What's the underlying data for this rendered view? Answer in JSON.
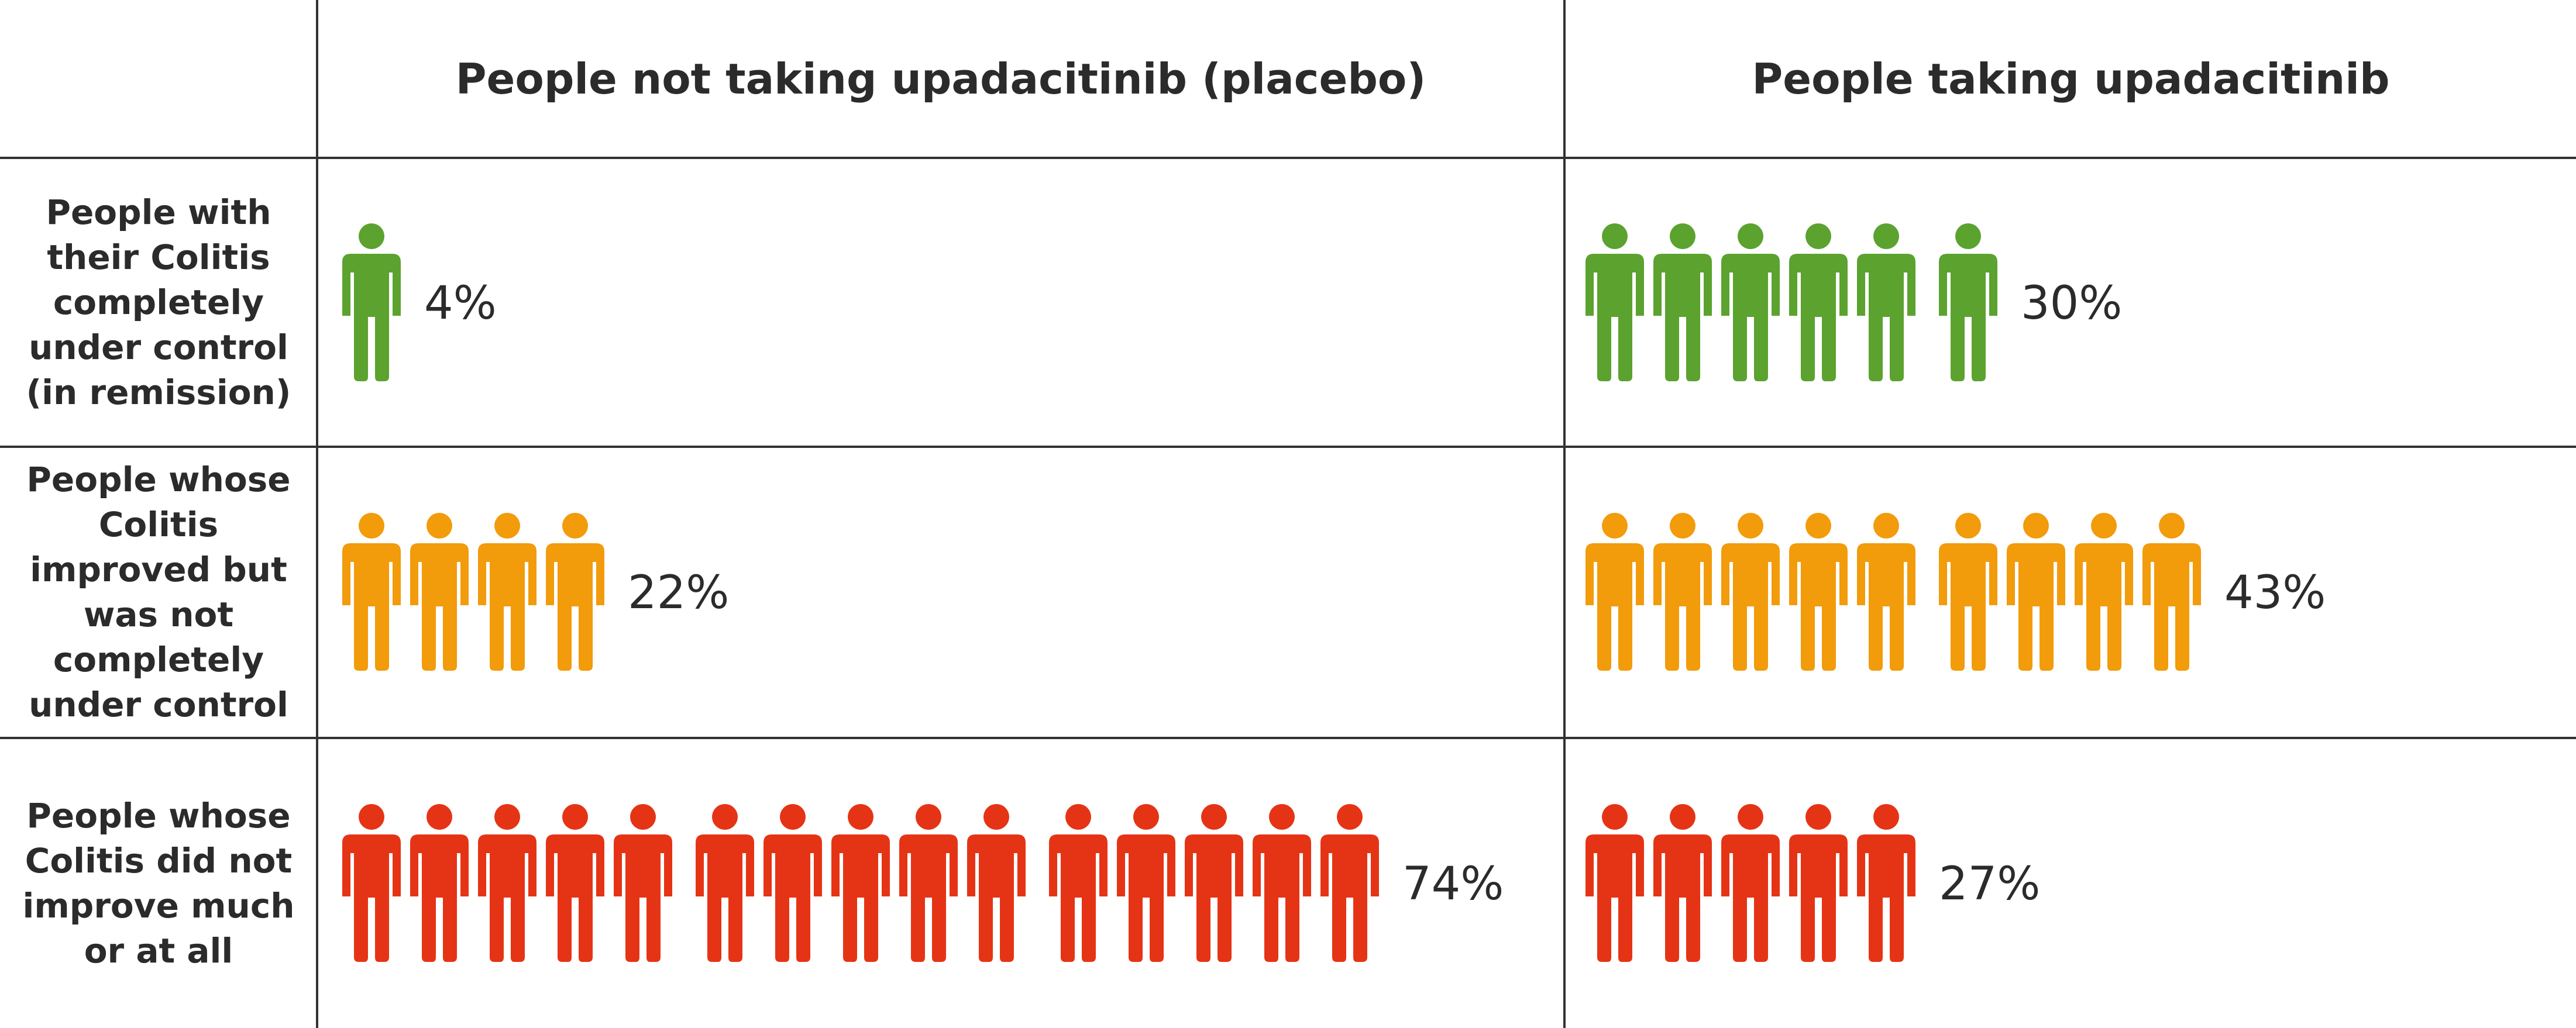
{
  "chart_data": {
    "type": "table",
    "columns": [
      "People not taking upadacitinib (placebo)",
      "People taking upadacitinib"
    ],
    "rows": [
      {
        "label_lines": [
          "People with",
          "their Colitis",
          "completely",
          "under control",
          "(in remission)"
        ],
        "color": "#5ba22f",
        "cells": [
          {
            "value": 4,
            "label": "4%",
            "icons": 1
          },
          {
            "value": 30,
            "label": "30%",
            "icons": 6
          }
        ]
      },
      {
        "label_lines": [
          "People whose",
          "Colitis",
          "improved but",
          "was not",
          "completely",
          "under control"
        ],
        "color": "#f29b0b",
        "cells": [
          {
            "value": 22,
            "label": "22%",
            "icons": 4
          },
          {
            "value": 43,
            "label": "43%",
            "icons": 9
          }
        ]
      },
      {
        "label_lines": [
          "People whose",
          "Colitis did not",
          "improve much",
          "or at all"
        ],
        "color": "#e53415",
        "cells": [
          {
            "value": 74,
            "label": "74%",
            "icons": 15
          },
          {
            "value": 27,
            "label": "27%",
            "icons": 5
          }
        ]
      }
    ]
  }
}
